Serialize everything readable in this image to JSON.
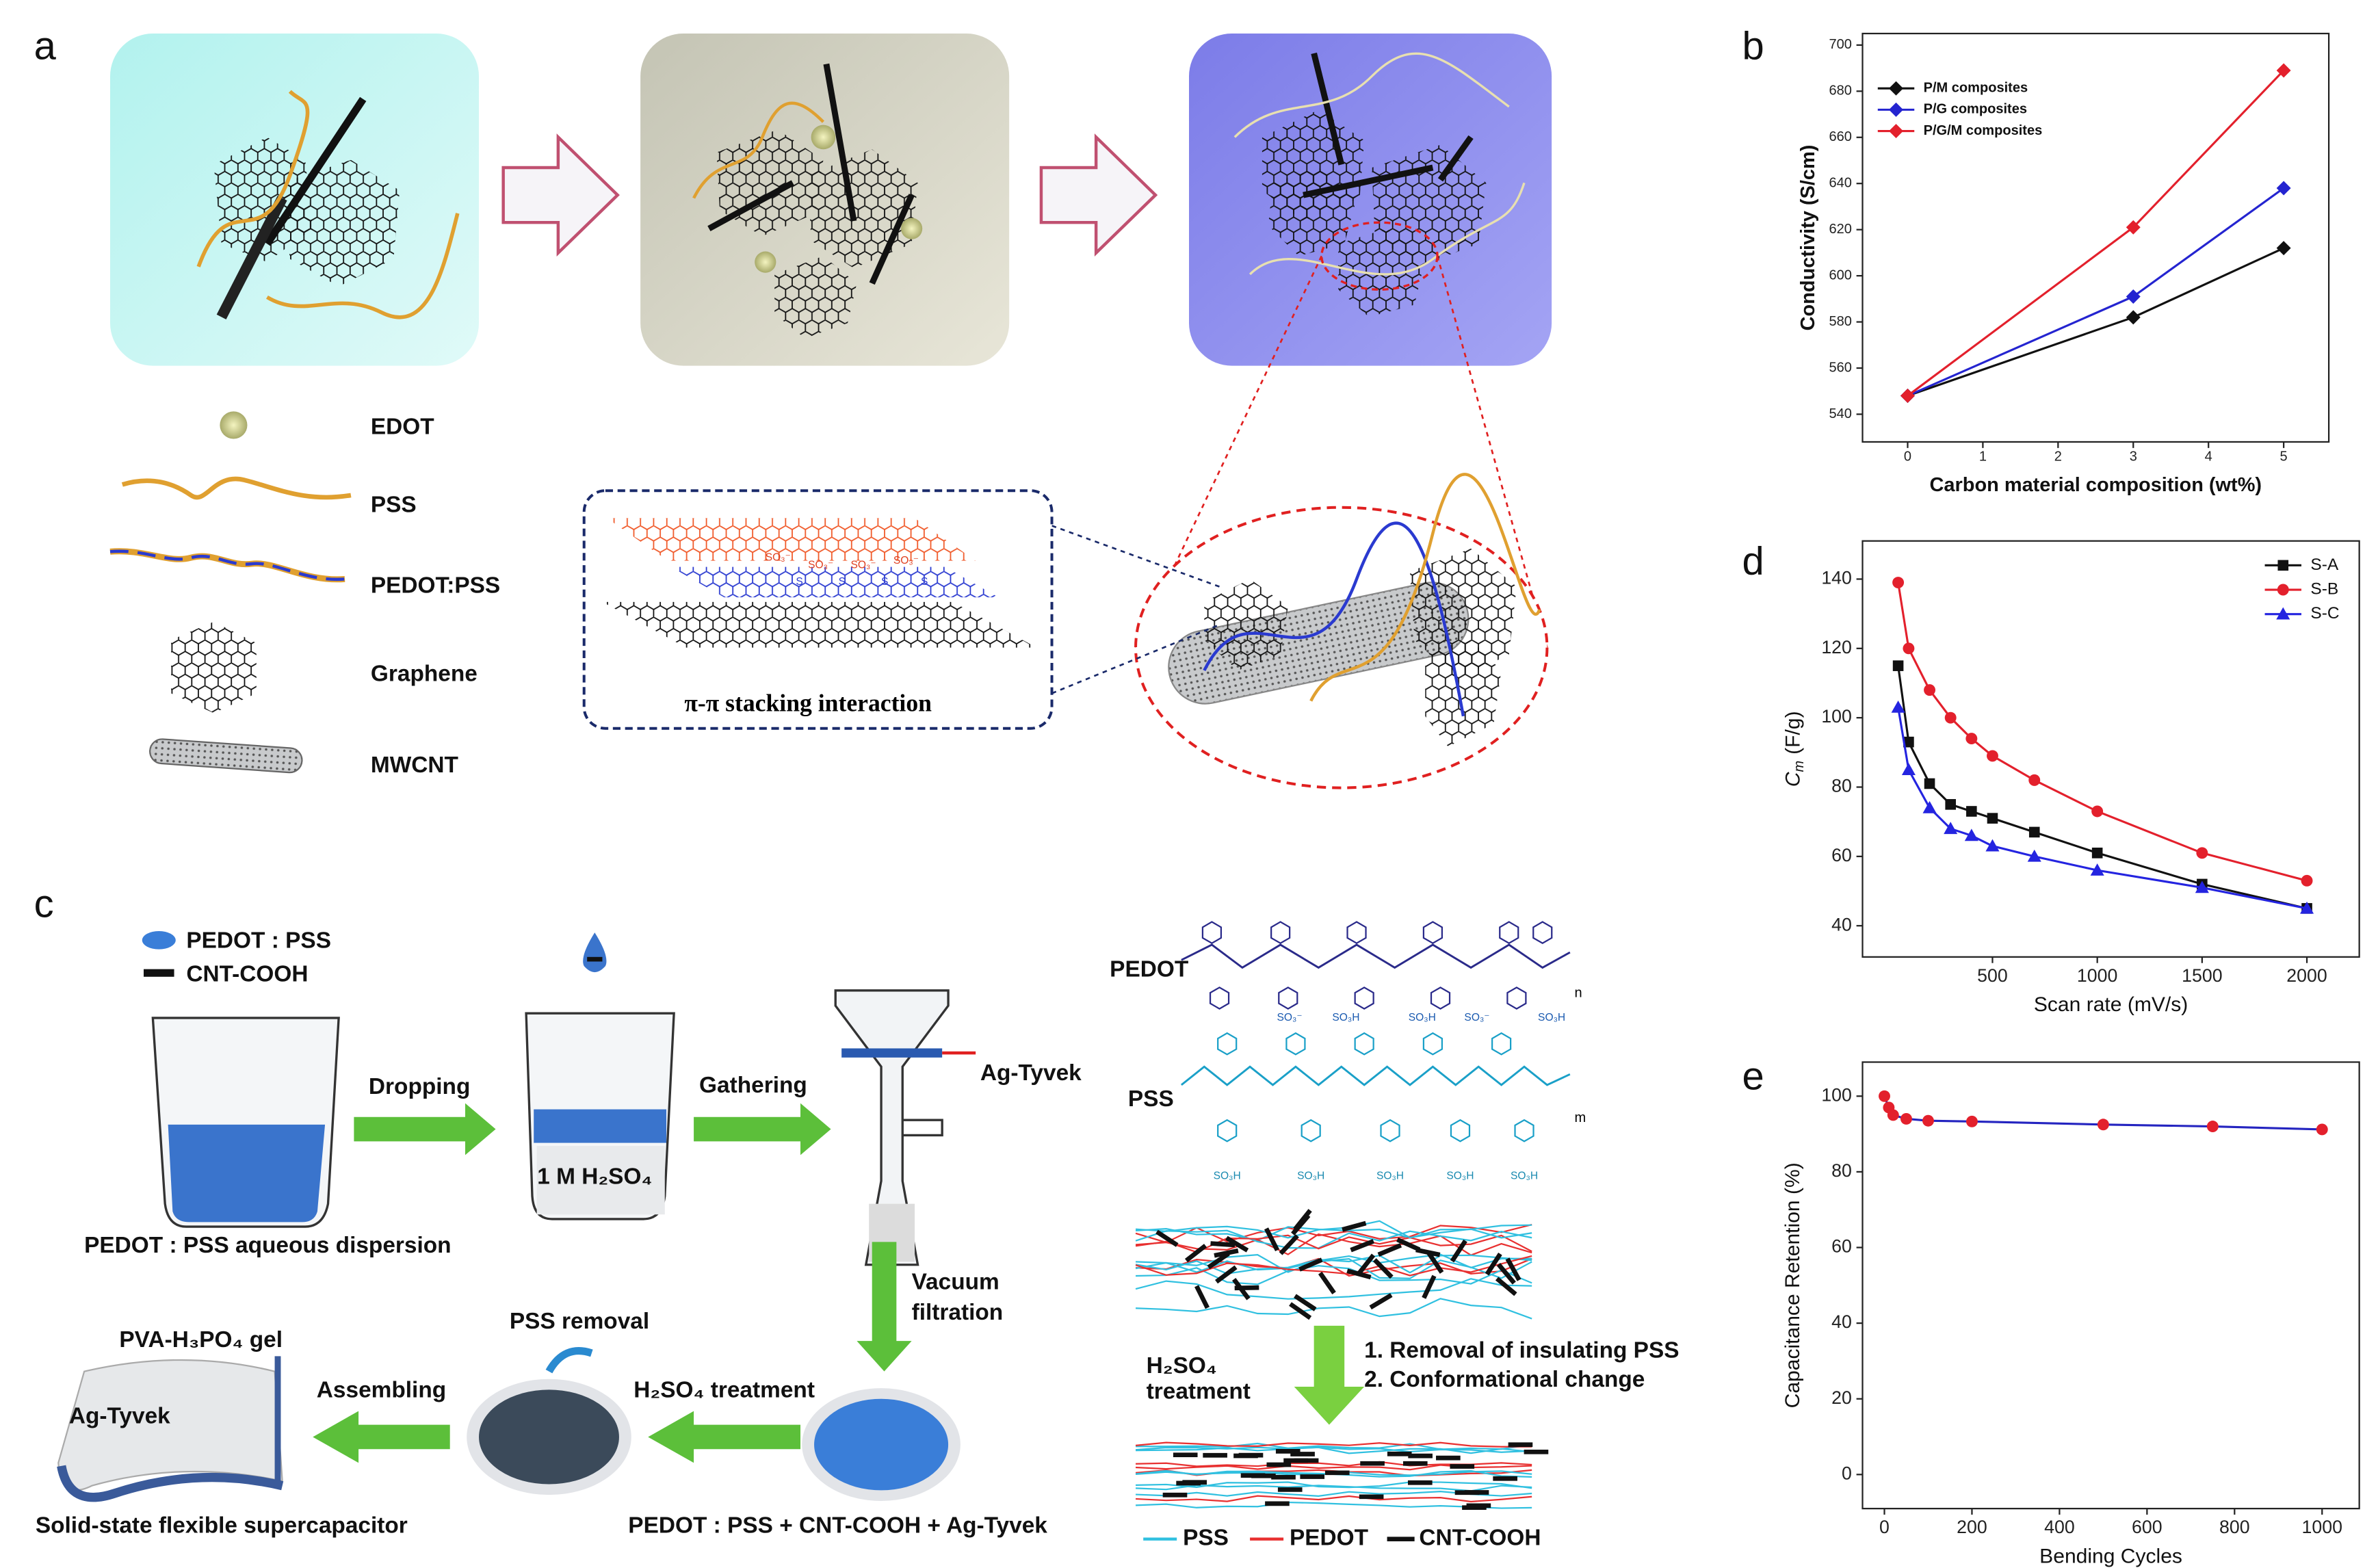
{
  "panel_labels": [
    "a",
    "b",
    "c",
    "d",
    "e"
  ],
  "panel_a": {
    "legend": [
      "EDOT",
      "PSS",
      "PEDOT:PSS",
      "Graphene",
      "MWCNT"
    ],
    "inset_title": "π-π stacking interaction",
    "inset_so3": [
      "SO₃⁻",
      "SO₃⁻",
      "SO₃⁻",
      "SO₃⁻"
    ],
    "inset_s": [
      "S",
      "S",
      "S",
      "S"
    ]
  },
  "panel_c": {
    "legend": [
      "PEDOT : PSS",
      "CNT-COOH"
    ],
    "dropping": "Dropping",
    "acid": "1 M H₂SO₄",
    "gathering": "Gathering",
    "ag_tyvek": "Ag-Tyvek",
    "dispersion": "PEDOT : PSS aqueous dispersion",
    "vacuum": [
      "Vacuum",
      "filtration"
    ],
    "pss_removal": "PSS removal",
    "treatment": "H₂SO₄ treatment",
    "assembling": "Assembling",
    "gel": "PVA-H₃PO₄ gel",
    "sheet": "Ag-Tyvek",
    "device": "Solid-state flexible supercapacitor",
    "composite": "PEDOT : PSS + CNT-COOH + Ag-Tyvek",
    "structure": {
      "pedot": "PEDOT",
      "pss": "PSS",
      "n": "n",
      "m": "m",
      "upper_groups": [
        "SO₃⁻",
        "SO₃H",
        "SO₃H",
        "SO₃⁻",
        "SO₃H"
      ],
      "lower_groups": [
        "SO₃H",
        "SO₃H",
        "SO₃H",
        "SO₃H",
        "SO₃H"
      ]
    },
    "film_treatment": [
      "H₂SO₄",
      "treatment"
    ],
    "film_steps": [
      "1. Removal of insulating PSS",
      "2. Conformational change"
    ],
    "film_legend": [
      "PSS",
      "PEDOT",
      "CNT-COOH"
    ]
  },
  "chart_data": [
    {
      "type": "line",
      "xlabel": "Carbon material composition (wt%)",
      "ylabel": "Conductivity (S/cm)",
      "x": [
        0,
        3,
        5
      ],
      "marker": "diamond",
      "series": [
        {
          "name": "P/M composites",
          "color": "#111111",
          "values": [
            548,
            582,
            612
          ]
        },
        {
          "name": "P/G composites",
          "color": "#2424d0",
          "values": [
            548,
            591,
            638
          ]
        },
        {
          "name": "P/G/M composites",
          "color": "#e3202c",
          "values": [
            548,
            621,
            689
          ]
        }
      ],
      "xlim": [
        -0.6,
        5.6
      ],
      "xticks": [
        0,
        1,
        2,
        3,
        4,
        5
      ],
      "ylim": [
        528,
        705
      ],
      "yticks": [
        540,
        560,
        580,
        600,
        620,
        640,
        660,
        680,
        700
      ],
      "legend": "upper left"
    },
    {
      "type": "line",
      "xlabel": "Scan rate (mV/s)",
      "ylabel": {
        "symbol": "C",
        "subscript": "m",
        "unit": "(F/g)"
      },
      "x": [
        50,
        100,
        200,
        300,
        400,
        500,
        700,
        1000,
        1500,
        2000
      ],
      "series": [
        {
          "name": "S-A",
          "color": "#111111",
          "marker": "square",
          "values": [
            115,
            93,
            81,
            75,
            73,
            71,
            67,
            61,
            52,
            45
          ]
        },
        {
          "name": "S-B",
          "color": "#e3202c",
          "marker": "circle",
          "values": [
            139,
            120,
            108,
            100,
            94,
            89,
            82,
            73,
            61,
            53
          ]
        },
        {
          "name": "S-C",
          "color": "#2424e0",
          "marker": "triangle",
          "values": [
            103,
            85,
            74,
            68,
            66,
            63,
            60,
            56,
            51,
            45
          ]
        }
      ],
      "xlim": [
        -120,
        2250
      ],
      "xticks": [
        500,
        1000,
        1500,
        2000
      ],
      "ylim": [
        31,
        151
      ],
      "yticks": [
        40,
        60,
        80,
        100,
        120,
        140
      ],
      "legend": "upper right"
    },
    {
      "type": "line",
      "xlabel": "Bending Cycles",
      "ylabel": "Capacitance Retention (%)",
      "x": [
        0,
        10,
        20,
        50,
        100,
        200,
        500,
        750,
        1000
      ],
      "values": [
        100,
        97,
        95,
        94,
        93.5,
        93.3,
        92.5,
        92,
        91.2
      ],
      "color": "#2424c0",
      "marker": "circle",
      "marker_color": "#e3202c",
      "xlim": [
        -50,
        1085
      ],
      "xticks": [
        0,
        200,
        400,
        600,
        800,
        1000
      ],
      "ylim": [
        -9,
        109
      ],
      "yticks": [
        0,
        20,
        40,
        60,
        80,
        100
      ]
    }
  ]
}
